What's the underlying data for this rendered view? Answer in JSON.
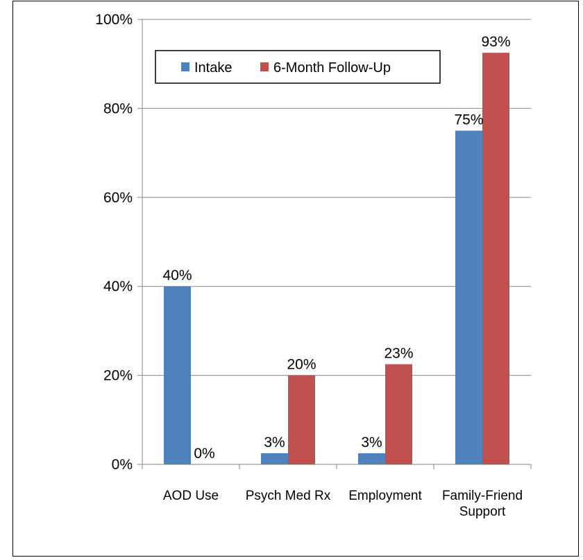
{
  "chart_data": {
    "type": "bar",
    "categories": [
      [
        "AOD Use"
      ],
      [
        "Psych Med Rx"
      ],
      [
        "Employment"
      ],
      [
        "Family-Friend",
        "Support"
      ]
    ],
    "series": [
      {
        "name": "Intake",
        "color": "#4F81BD",
        "values": [
          40,
          2.5,
          2.5,
          75
        ],
        "labels": [
          "40%",
          "3%",
          "3%",
          "75%"
        ]
      },
      {
        "name": "6-Month Follow-Up",
        "color": "#C0504D",
        "values": [
          0,
          20,
          22.5,
          92.5
        ],
        "labels": [
          "0%",
          "20%",
          "23%",
          "93%"
        ]
      }
    ],
    "ylim": [
      0,
      100
    ],
    "yticks": [
      0,
      20,
      40,
      60,
      80,
      100
    ],
    "ytick_labels": [
      "0%",
      "20%",
      "40%",
      "60%",
      "80%",
      "100%"
    ],
    "grid": true,
    "legend_position": "top-left"
  }
}
